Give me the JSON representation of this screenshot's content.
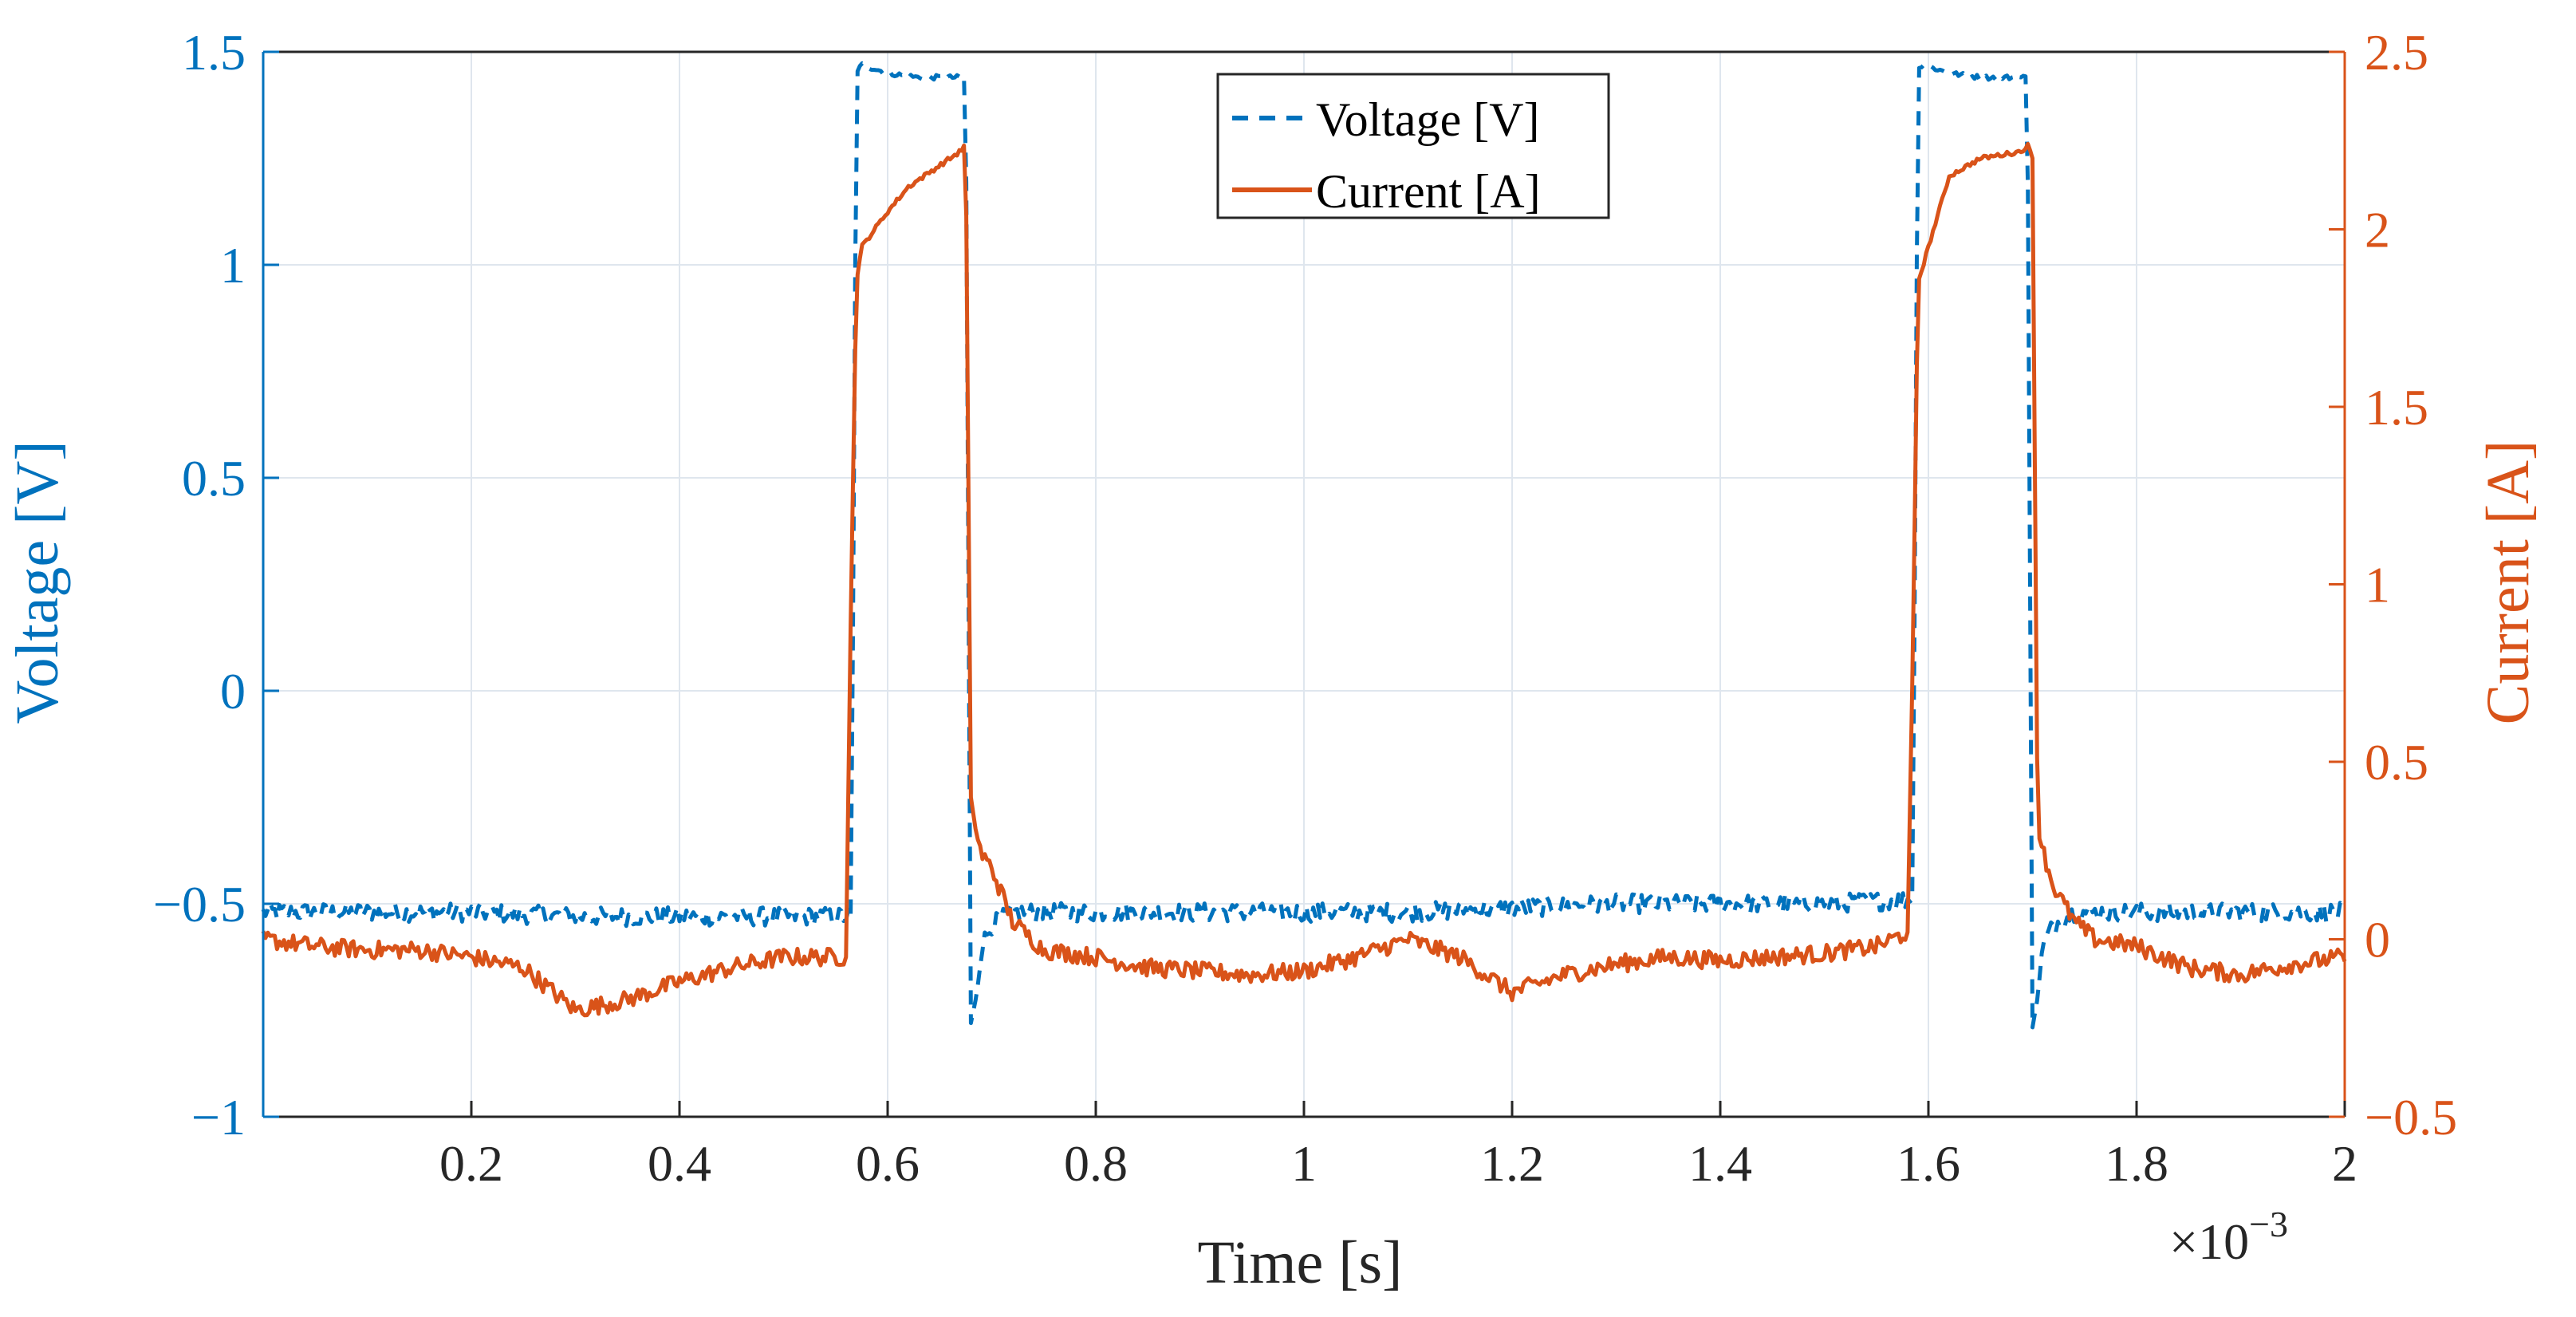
{
  "chart_data": {
    "type": "line",
    "title": "",
    "xlabel": "Time [s]",
    "x_multiplier_label": "×10",
    "x_multiplier_exponent": "−3",
    "x_scale": 0.001,
    "xlim": [
      0,
      2
    ],
    "x_ticks": [
      0.2,
      0.4,
      0.6,
      0.8,
      1,
      1.2,
      1.4,
      1.6,
      1.8,
      2
    ],
    "x_tick_labels": [
      "0.2",
      "0.4",
      "0.6",
      "0.8",
      "1",
      "1.2",
      "1.4",
      "1.6",
      "1.8",
      "2"
    ],
    "y_left": {
      "label": "Voltage [V]",
      "lim": [
        -1,
        1.5
      ],
      "ticks": [
        -1,
        -0.5,
        0,
        0.5,
        1,
        1.5
      ],
      "tick_labels": [
        "−1",
        "−0.5",
        "0",
        "0.5",
        "1",
        "1.5"
      ],
      "color": "#0072BD"
    },
    "y_right": {
      "label": "Current [A]",
      "lim": [
        -0.5,
        2.5
      ],
      "ticks": [
        -0.5,
        0,
        0.5,
        1,
        1.5,
        2,
        2.5
      ],
      "tick_labels": [
        "−0.5",
        "0",
        "0.5",
        "1",
        "1.5",
        "2",
        "2.5"
      ],
      "color": "#D95319"
    },
    "grid": true,
    "legend": {
      "position": "top-center",
      "entries": [
        {
          "label": "Voltage [V]",
          "series": "voltage"
        },
        {
          "label": "Current [A]",
          "series": "current"
        }
      ]
    },
    "series": [
      {
        "name": "Voltage [V]",
        "id": "voltage",
        "axis": "left",
        "style": "dashed",
        "color": "#0072BD",
        "x": [
          0,
          0.1,
          0.2,
          0.3,
          0.4,
          0.5,
          0.56,
          0.565,
          0.57,
          0.575,
          0.6,
          0.63,
          0.67,
          0.675,
          0.68,
          0.685,
          0.69,
          0.7,
          0.72,
          0.75,
          0.8,
          0.9,
          1.0,
          1.1,
          1.2,
          1.3,
          1.4,
          1.5,
          1.58,
          1.585,
          1.59,
          1.595,
          1.62,
          1.65,
          1.69,
          1.695,
          1.7,
          1.705,
          1.71,
          1.72,
          1.74,
          1.78,
          1.85,
          1.9,
          2.0
        ],
        "values": [
          -0.52,
          -0.52,
          -0.52,
          -0.53,
          -0.53,
          -0.53,
          -0.53,
          -0.53,
          1.45,
          1.47,
          1.45,
          1.44,
          1.44,
          1.44,
          -0.78,
          -0.72,
          -0.6,
          -0.55,
          -0.52,
          -0.52,
          -0.52,
          -0.52,
          -0.52,
          -0.52,
          -0.51,
          -0.5,
          -0.5,
          -0.5,
          -0.49,
          -0.49,
          1.46,
          1.47,
          1.45,
          1.44,
          1.44,
          1.44,
          -0.79,
          -0.72,
          -0.6,
          -0.55,
          -0.52,
          -0.52,
          -0.52,
          -0.52,
          -0.52
        ]
      },
      {
        "name": "Current [A]",
        "id": "current",
        "axis": "right",
        "style": "solid",
        "color": "#D95319",
        "x": [
          0,
          0.05,
          0.1,
          0.15,
          0.2,
          0.25,
          0.3,
          0.35,
          0.4,
          0.45,
          0.5,
          0.56,
          0.565,
          0.57,
          0.575,
          0.58,
          0.6,
          0.62,
          0.65,
          0.67,
          0.675,
          0.68,
          0.685,
          0.69,
          0.7,
          0.72,
          0.75,
          0.8,
          0.85,
          0.9,
          0.95,
          1.0,
          1.05,
          1.1,
          1.15,
          1.2,
          1.25,
          1.3,
          1.35,
          1.4,
          1.45,
          1.5,
          1.55,
          1.58,
          1.585,
          1.59,
          1.6,
          1.62,
          1.65,
          1.69,
          1.695,
          1.7,
          1.705,
          1.71,
          1.72,
          1.74,
          1.76,
          1.8,
          1.85,
          1.9,
          1.95,
          2.0
        ],
        "values": [
          0.0,
          -0.02,
          -0.03,
          -0.03,
          -0.05,
          -0.08,
          -0.2,
          -0.17,
          -0.12,
          -0.08,
          -0.05,
          -0.05,
          1.0,
          1.85,
          1.95,
          1.97,
          2.05,
          2.12,
          2.18,
          2.22,
          2.24,
          0.4,
          0.3,
          0.24,
          0.2,
          0.05,
          -0.03,
          -0.05,
          -0.08,
          -0.09,
          -0.1,
          -0.09,
          -0.05,
          0.0,
          -0.05,
          -0.15,
          -0.1,
          -0.07,
          -0.05,
          -0.06,
          -0.05,
          -0.04,
          -0.02,
          0.02,
          0.8,
          1.85,
          1.95,
          2.15,
          2.2,
          2.22,
          2.24,
          2.2,
          0.3,
          0.25,
          0.15,
          0.05,
          0.0,
          -0.02,
          -0.08,
          -0.1,
          -0.07,
          -0.05
        ]
      }
    ]
  }
}
